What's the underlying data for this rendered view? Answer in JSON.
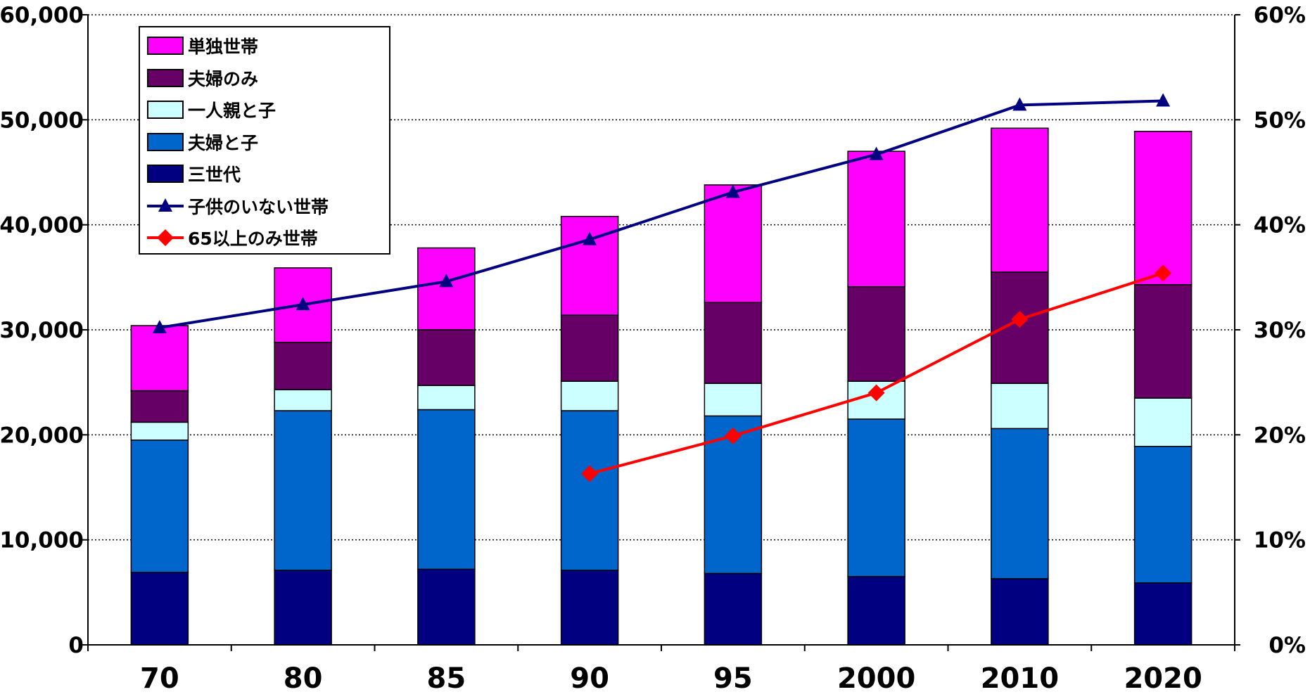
{
  "chart_data": {
    "type": "bar",
    "stacked": true,
    "categories": [
      "70",
      "80",
      "85",
      "90",
      "95",
      "2000",
      "2010",
      "2020"
    ],
    "y_left": {
      "range": [
        0,
        60000
      ],
      "ticks": [
        0,
        10000,
        20000,
        30000,
        40000,
        50000,
        60000
      ],
      "tick_labels": [
        "0",
        "10,000",
        "20,000",
        "30,000",
        "40,000",
        "50,000",
        "60,000"
      ]
    },
    "y_right": {
      "range": [
        0,
        60
      ],
      "ticks": [
        0,
        10,
        20,
        30,
        40,
        50,
        60
      ],
      "tick_labels": [
        "0%",
        "10%",
        "20%",
        "30%",
        "40%",
        "50%",
        "60%"
      ]
    },
    "grid": "horizontal dotted",
    "legend_position": "top-left",
    "series": [
      {
        "name": "三世代",
        "kind": "bar",
        "color": "#000080",
        "values": [
          6900,
          7100,
          7200,
          7100,
          6800,
          6500,
          6300,
          5900
        ]
      },
      {
        "name": "夫婦と子",
        "kind": "bar",
        "color": "#0066CC",
        "values": [
          12600,
          15200,
          15200,
          15200,
          15000,
          15000,
          14300,
          13000
        ]
      },
      {
        "name": "一人親と子",
        "kind": "bar",
        "color": "#CCFFFF",
        "values": [
          1700,
          2000,
          2300,
          2800,
          3100,
          3600,
          4300,
          4600
        ]
      },
      {
        "name": "夫婦のみ",
        "kind": "bar",
        "color": "#660066",
        "values": [
          3000,
          4500,
          5300,
          6300,
          7700,
          9000,
          10600,
          10800
        ]
      },
      {
        "name": "単独世帯",
        "kind": "bar",
        "color": "#FF00FF",
        "values": [
          6200,
          7100,
          7800,
          9400,
          11200,
          12900,
          13700,
          14600
        ]
      },
      {
        "name": "子供のいない世帯",
        "kind": "line",
        "axis": "right",
        "color": "#000080",
        "marker": "triangle",
        "values": [
          30.2,
          32.4,
          34.6,
          38.6,
          43.1,
          46.7,
          51.4,
          51.8
        ]
      },
      {
        "name": "65以上のみ世帯",
        "kind": "line",
        "axis": "right",
        "color": "#FF0000",
        "marker": "diamond",
        "values": [
          null,
          null,
          null,
          16.3,
          19.9,
          24.0,
          31.0,
          35.4
        ]
      }
    ],
    "legend_order": [
      "単独世帯",
      "夫婦のみ",
      "一人親と子",
      "夫婦と子",
      "三世代",
      "子供のいない世帯",
      "65以上のみ世帯"
    ]
  }
}
